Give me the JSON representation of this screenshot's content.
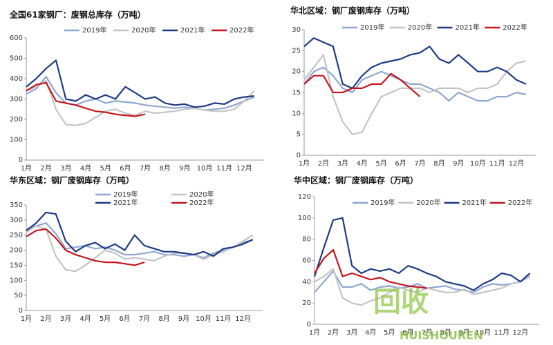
{
  "chart_data": [
    {
      "type": "line",
      "title": "全国61家钢厂：废钢总库存（万吨）",
      "categories": [
        "1月",
        null,
        "2月",
        null,
        "3月",
        null,
        "4月",
        null,
        "5月",
        null,
        "6月",
        null,
        "7月",
        null,
        "8月",
        null,
        "9月",
        null,
        "10月",
        null,
        "11月",
        null,
        "12月",
        null
      ],
      "ylim": [
        0,
        600
      ],
      "yticks": [
        0,
        100,
        200,
        300,
        400,
        500,
        600
      ],
      "legend": "top",
      "series": [
        {
          "name": "2019年",
          "color": "#8ea7d2",
          "values": [
            325,
            350,
            410,
            330,
            280,
            270,
            290,
            300,
            280,
            290,
            285,
            280,
            270,
            265,
            260,
            255,
            260,
            255,
            245,
            250,
            255,
            270,
            290,
            310
          ]
        },
        {
          "name": "2020年",
          "color": "#c4c4c4",
          "values": [
            340,
            360,
            390,
            250,
            175,
            170,
            180,
            210,
            240,
            250,
            230,
            220,
            240,
            230,
            235,
            240,
            250,
            255,
            245,
            240,
            240,
            250,
            290,
            340
          ]
        },
        {
          "name": "2021年",
          "color": "#1d3a85",
          "values": [
            360,
            400,
            450,
            490,
            300,
            290,
            320,
            300,
            320,
            300,
            360,
            330,
            300,
            310,
            280,
            270,
            275,
            260,
            265,
            280,
            275,
            300,
            310,
            315
          ]
        },
        {
          "name": "2022年",
          "color": "#c3161d",
          "values": [
            340,
            370,
            380,
            290,
            280,
            270,
            255,
            240,
            235,
            225,
            220,
            215,
            225,
            null,
            null,
            null,
            null,
            null,
            null,
            null,
            null,
            null,
            null,
            null
          ]
        }
      ]
    },
    {
      "type": "line",
      "title": "华北区域：钢厂废钢库存（万吨）",
      "categories": [
        "1月",
        null,
        "2月",
        null,
        "3月",
        null,
        "4月",
        null,
        "5月",
        null,
        "6月",
        null,
        "7月",
        null,
        "8月",
        null,
        "9月",
        null,
        "10月",
        null,
        "11月",
        null,
        "12月",
        null
      ],
      "ylim": [
        0,
        30
      ],
      "yticks": [
        0,
        5,
        10,
        15,
        20,
        25,
        30
      ],
      "legend": "top",
      "series": [
        {
          "name": "2019年",
          "color": "#8ea7d2",
          "values": [
            17,
            20,
            21,
            19,
            16,
            15,
            18,
            19,
            20,
            19,
            18,
            17,
            17,
            16,
            15,
            13,
            15,
            14,
            13,
            13,
            14,
            14,
            15,
            14.5
          ]
        },
        {
          "name": "2020年",
          "color": "#c4c4c4",
          "values": [
            18,
            21,
            24,
            14,
            8,
            5,
            5.5,
            10,
            14,
            15,
            16,
            16,
            16,
            15,
            16,
            16,
            16,
            15,
            16,
            16,
            17,
            20,
            22,
            22.5
          ]
        },
        {
          "name": "2021年",
          "color": "#1d3a85",
          "values": [
            26,
            28,
            27,
            26,
            17,
            16,
            19,
            21,
            22,
            22.5,
            23,
            24,
            24.5,
            26,
            23,
            22,
            24,
            22,
            20,
            20,
            21,
            20,
            18,
            17
          ]
        },
        {
          "name": "2022年",
          "color": "#c3161d",
          "values": [
            17,
            19,
            19,
            15,
            15,
            16,
            16,
            17,
            17,
            19.5,
            18,
            16,
            14,
            null,
            null,
            null,
            null,
            null,
            null,
            null,
            null,
            null,
            null,
            null
          ]
        }
      ]
    },
    {
      "type": "line",
      "title": "华东区域：钢厂废钢库存（万吨）",
      "categories": [
        "1月",
        null,
        "2月",
        null,
        "3月",
        null,
        "4月",
        null,
        "5月",
        null,
        "6月",
        null,
        "7月",
        null,
        "8月",
        null,
        "9月",
        null,
        "10月",
        null,
        "11月",
        null,
        "12月",
        null
      ],
      "ylim": [
        0,
        350
      ],
      "yticks": [
        0,
        50,
        100,
        150,
        200,
        250,
        300,
        350
      ],
      "legend": "top-two-rows",
      "series": [
        {
          "name": "2019年",
          "color": "#8ea7d2",
          "values": [
            270,
            280,
            290,
            255,
            205,
            210,
            215,
            205,
            210,
            200,
            185,
            185,
            190,
            195,
            185,
            185,
            180,
            185,
            175,
            190,
            200,
            210,
            225,
            235
          ]
        },
        {
          "name": "2020年",
          "color": "#c4c4c4",
          "values": [
            260,
            280,
            270,
            180,
            135,
            130,
            150,
            175,
            200,
            190,
            170,
            175,
            170,
            165,
            180,
            190,
            190,
            185,
            170,
            185,
            195,
            210,
            230,
            250
          ]
        },
        {
          "name": "2021年",
          "color": "#1d3a85",
          "values": [
            265,
            290,
            325,
            320,
            230,
            195,
            215,
            225,
            205,
            220,
            200,
            250,
            215,
            205,
            195,
            195,
            190,
            185,
            195,
            180,
            205,
            210,
            220,
            235
          ]
        },
        {
          "name": "2022年",
          "color": "#c3161d",
          "values": [
            245,
            265,
            270,
            240,
            200,
            185,
            175,
            165,
            160,
            160,
            155,
            150,
            160,
            null,
            null,
            null,
            null,
            null,
            null,
            null,
            null,
            null,
            null,
            null
          ]
        }
      ]
    },
    {
      "type": "line",
      "title": "华中区域：钢厂废钢库存（万吨）",
      "categories": [
        "1月",
        null,
        "2月",
        null,
        "3月",
        null,
        "4月",
        null,
        "5月",
        null,
        "6月",
        null,
        "7月",
        null,
        "8月",
        null,
        "9月",
        null,
        "10月",
        null,
        "11月",
        null,
        "12月",
        null
      ],
      "ylim": [
        0,
        120
      ],
      "yticks": [
        0,
        20,
        40,
        60,
        80,
        100,
        120
      ],
      "legend": "top",
      "series": [
        {
          "name": "2019年",
          "color": "#8ea7d2",
          "values": [
            30,
            40,
            50,
            35,
            35,
            38,
            32,
            35,
            36,
            34,
            35,
            38,
            34,
            35,
            36,
            33,
            32,
            30,
            35,
            38,
            37,
            38,
            40,
            45
          ]
        },
        {
          "name": "2020年",
          "color": "#c4c4c4",
          "values": [
            40,
            45,
            52,
            25,
            20,
            18,
            22,
            25,
            30,
            35,
            32,
            30,
            34,
            32,
            30,
            30,
            33,
            28,
            30,
            32,
            34,
            38,
            40,
            46
          ]
        },
        {
          "name": "2021年",
          "color": "#1d3a85",
          "values": [
            45,
            72,
            98,
            100,
            55,
            48,
            52,
            50,
            52,
            48,
            55,
            52,
            48,
            45,
            40,
            38,
            36,
            32,
            38,
            42,
            48,
            46,
            40,
            48
          ]
        },
        {
          "name": "2022年",
          "color": "#c3161d",
          "values": [
            48,
            62,
            70,
            45,
            48,
            45,
            42,
            44,
            40,
            38,
            36,
            35,
            34,
            null,
            null,
            null,
            null,
            null,
            null,
            null,
            null,
            null,
            null,
            null
          ]
        }
      ]
    }
  ],
  "watermark": {
    "logo": "回收",
    "text": "HUISHOUREN"
  }
}
